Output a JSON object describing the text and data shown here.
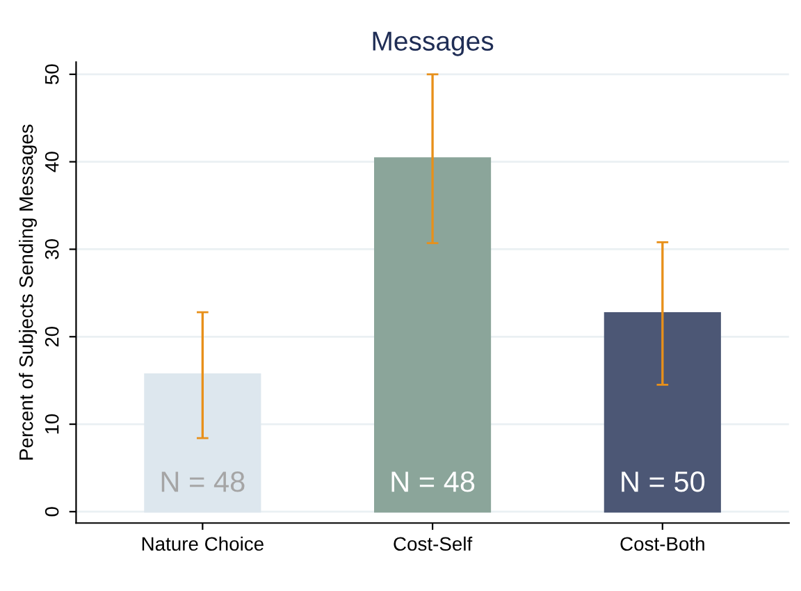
{
  "chart_data": {
    "type": "bar",
    "title": "Messages",
    "ylabel": "Percent of Subjects Sending Messages",
    "categories": [
      "Nature Choice",
      "Cost-Self",
      "Cost-Both"
    ],
    "values": [
      15.7,
      40.4,
      22.7
    ],
    "colors": [
      "#dde7ee",
      "#8ba59a",
      "#4c5775"
    ],
    "errors": [
      [
        8.4,
        22.8
      ],
      [
        30.7,
        50
      ],
      [
        14.5,
        30.8
      ]
    ],
    "annotations": [
      "N = 48",
      "N = 48",
      "N = 50"
    ],
    "ylim": [
      -1.3,
      51.4
    ],
    "yticks": [
      0,
      10,
      20,
      30,
      40,
      50
    ],
    "grid": "y"
  }
}
